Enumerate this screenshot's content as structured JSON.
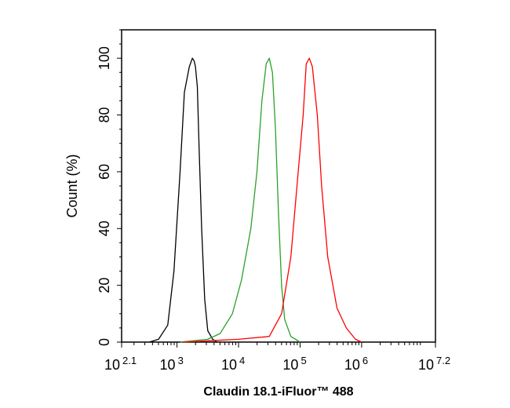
{
  "chart_data": {
    "type": "line",
    "title": "",
    "xlabel": "Claudin 18.1-iFluor™ 488",
    "ylabel": "Count (%)",
    "xscale": "log",
    "xlim_exponent": [
      2.1,
      7.2
    ],
    "ylim": [
      0,
      110
    ],
    "x_ticks": [
      {
        "base": "10",
        "exp": "2.1",
        "value_exp": 2.1
      },
      {
        "base": "10",
        "exp": "3",
        "value_exp": 3
      },
      {
        "base": "10",
        "exp": "4",
        "value_exp": 4
      },
      {
        "base": "10",
        "exp": "5",
        "value_exp": 5
      },
      {
        "base": "10",
        "exp": "6",
        "value_exp": 6
      },
      {
        "base": "10",
        "exp": "7.2",
        "value_exp": 7.2
      }
    ],
    "y_ticks": [
      "0",
      "20",
      "40",
      "60",
      "80",
      "100"
    ],
    "grid": false,
    "series": [
      {
        "color": "#000000",
        "x_exp": [
          2.55,
          2.7,
          2.85,
          2.95,
          3.05,
          3.12,
          3.2,
          3.25,
          3.28,
          3.3,
          3.33,
          3.36,
          3.4,
          3.45,
          3.5,
          3.58,
          3.65
        ],
        "y": [
          0,
          1,
          6,
          25,
          60,
          88,
          97,
          100,
          99,
          97,
          90,
          68,
          40,
          15,
          4,
          1,
          0
        ]
      },
      {
        "color": "#2ca02c",
        "x_exp": [
          3.05,
          3.5,
          3.7,
          3.9,
          4.05,
          4.2,
          4.3,
          4.38,
          4.45,
          4.5,
          4.55,
          4.6,
          4.65,
          4.7,
          4.75,
          4.85,
          5.0
        ],
        "y": [
          0,
          1,
          3,
          10,
          22,
          40,
          60,
          85,
          98,
          100,
          95,
          75,
          45,
          20,
          8,
          2,
          0
        ]
      },
      {
        "color": "#ff0000",
        "x_exp": [
          3.1,
          4.0,
          4.5,
          4.7,
          4.85,
          4.95,
          5.05,
          5.1,
          5.15,
          5.2,
          5.28,
          5.35,
          5.45,
          5.6,
          5.75,
          5.9,
          6.0
        ],
        "y": [
          0,
          1,
          2,
          10,
          30,
          55,
          80,
          98,
          100,
          97,
          80,
          55,
          30,
          12,
          5,
          1,
          0
        ]
      }
    ]
  }
}
